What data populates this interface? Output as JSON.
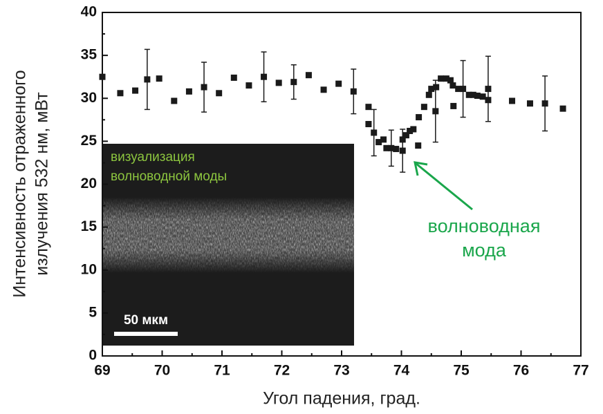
{
  "chart_data": {
    "type": "scatter",
    "xlabel": "Угол падения, град.",
    "ylabel": [
      "Интенсивность отраженного",
      "излучения 532 нм, мВт"
    ],
    "x": [
      69.0,
      69.3,
      69.55,
      69.75,
      69.95,
      70.2,
      70.45,
      70.7,
      70.95,
      71.2,
      71.45,
      71.7,
      71.95,
      72.2,
      72.45,
      72.7,
      72.95,
      73.2,
      73.45,
      73.45,
      73.54,
      73.62,
      73.7,
      73.75,
      73.83,
      73.91,
      74.02,
      74.02,
      74.08,
      74.14,
      74.2,
      74.28,
      74.29,
      74.38,
      74.46,
      74.5,
      74.57,
      74.58,
      74.66,
      74.75,
      74.82,
      74.86,
      74.87,
      74.95,
      75.03,
      75.13,
      75.2,
      75.27,
      75.36,
      75.45,
      75.45,
      75.85,
      76.15,
      76.4,
      76.7
    ],
    "values": [
      32.5,
      30.6,
      30.9,
      32.2,
      32.3,
      29.7,
      30.8,
      31.3,
      30.6,
      32.4,
      31.5,
      32.5,
      31.8,
      31.9,
      32.7,
      31.0,
      31.7,
      30.8,
      29.0,
      27.0,
      26.0,
      24.9,
      25.2,
      24.2,
      24.2,
      24.1,
      23.9,
      25.2,
      25.7,
      26.2,
      26.4,
      24.5,
      27.8,
      29.0,
      30.4,
      31.1,
      28.5,
      31.3,
      32.3,
      32.3,
      32.1,
      31.5,
      29.1,
      31.1,
      31.1,
      30.4,
      30.4,
      30.3,
      30.2,
      29.8,
      31.1,
      29.7,
      29.4,
      29.4,
      28.8
    ],
    "errors": [
      null,
      null,
      null,
      3.5,
      null,
      null,
      null,
      2.9,
      null,
      null,
      null,
      2.9,
      null,
      2.0,
      null,
      null,
      null,
      2.6,
      null,
      null,
      2.7,
      null,
      null,
      null,
      2.1,
      null,
      2.5,
      null,
      null,
      null,
      null,
      null,
      null,
      null,
      null,
      null,
      3.6,
      null,
      null,
      null,
      null,
      null,
      null,
      null,
      3.3,
      null,
      null,
      null,
      null,
      null,
      3.8,
      null,
      null,
      3.2,
      null
    ],
    "color": "#1a1a1a",
    "xlim": [
      69,
      77
    ],
    "xticks": [
      69,
      70,
      71,
      72,
      73,
      74,
      75,
      76,
      77
    ],
    "ylim": [
      0,
      40
    ],
    "yticks": [
      0,
      5,
      10,
      15,
      20,
      25,
      30,
      35,
      40
    ],
    "inset_caption": [
      "визуализация",
      "волноводной моды"
    ],
    "scale_bar_label": "50 мкм",
    "annotation": [
      "волноводная",
      "мода"
    ]
  }
}
